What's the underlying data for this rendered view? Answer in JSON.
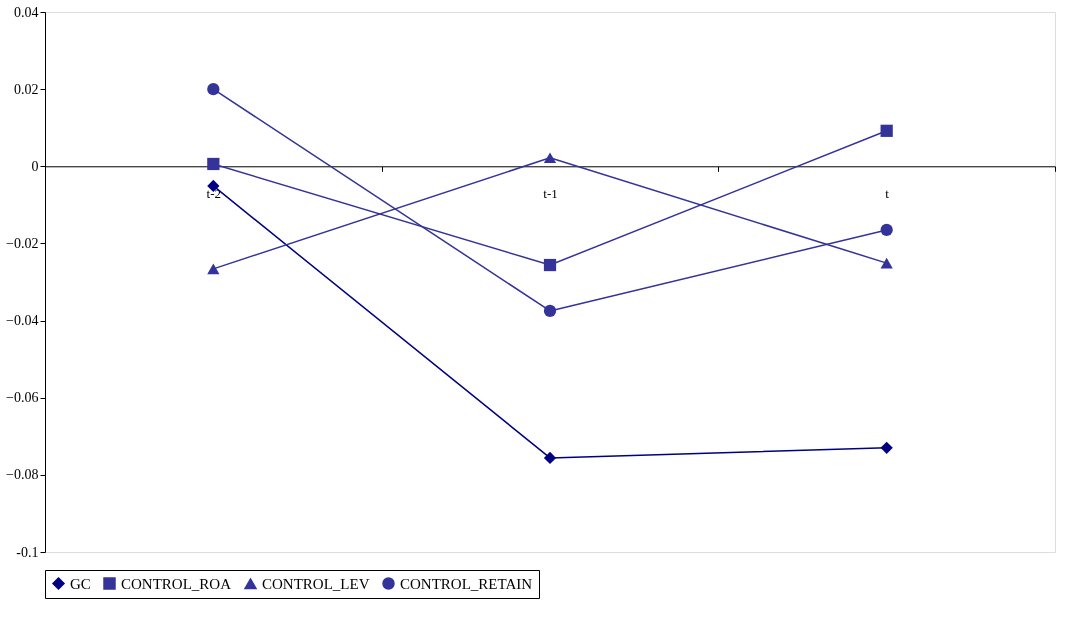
{
  "chart_data": {
    "type": "line",
    "categories": [
      "t-2",
      "t-1",
      "t"
    ],
    "series": [
      {
        "name": "GC",
        "color": "#000080",
        "marker": "diamond",
        "values": [
          -0.0051,
          -0.0756,
          -0.073
        ]
      },
      {
        "name": "CONTROL_ROA",
        "color": "#333399",
        "marker": "square",
        "values": [
          0.0006,
          -0.0256,
          0.0092
        ]
      },
      {
        "name": "CONTROL_LEV",
        "color": "#333399",
        "marker": "triangle",
        "values": [
          -0.0266,
          0.0022,
          -0.0251
        ]
      },
      {
        "name": "CONTROL_RETAIN",
        "color": "#333399",
        "marker": "circle",
        "values": [
          0.02,
          -0.0375,
          -0.0165
        ]
      }
    ],
    "ylim": [
      -0.1,
      0.04
    ],
    "yticks": [
      {
        "value": -0.1,
        "label": "-0.1"
      },
      -0.08,
      -0.06,
      -0.04,
      -0.02,
      {
        "value": 0,
        "label": "0"
      },
      0.02,
      0.04
    ],
    "grid": false,
    "legend": "bottom",
    "line_style": "solid"
  }
}
